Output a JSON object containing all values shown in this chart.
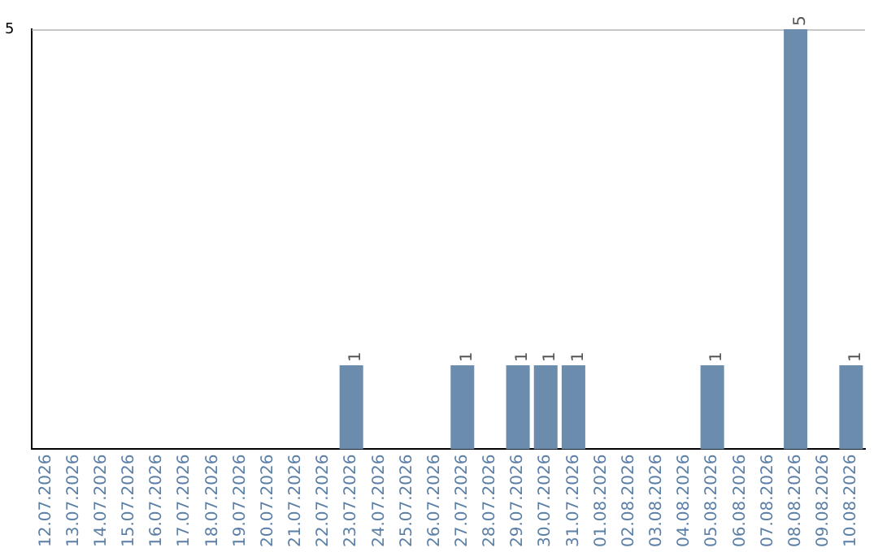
{
  "chart_data": {
    "type": "bar",
    "categories": [
      "12.07.2026",
      "13.07.2026",
      "14.07.2026",
      "15.07.2026",
      "16.07.2026",
      "17.07.2026",
      "18.07.2026",
      "19.07.2026",
      "20.07.2026",
      "21.07.2026",
      "22.07.2026",
      "23.07.2026",
      "24.07.2026",
      "25.07.2026",
      "26.07.2026",
      "27.07.2026",
      "28.07.2026",
      "29.07.2026",
      "30.07.2026",
      "31.07.2026",
      "01.08.2026",
      "02.08.2026",
      "03.08.2026",
      "04.08.2026",
      "05.08.2026",
      "06.08.2026",
      "07.08.2026",
      "08.08.2026",
      "09.08.2026",
      "10.08.2026"
    ],
    "values": [
      0,
      0,
      0,
      0,
      0,
      0,
      0,
      0,
      0,
      0,
      0,
      1,
      0,
      0,
      0,
      1,
      0,
      1,
      1,
      1,
      0,
      0,
      0,
      0,
      1,
      0,
      0,
      5,
      0,
      1
    ],
    "value_labels": [
      null,
      null,
      null,
      null,
      null,
      null,
      null,
      null,
      null,
      null,
      null,
      "1",
      null,
      null,
      null,
      "1",
      null,
      "1",
      "1",
      "1",
      null,
      null,
      null,
      null,
      "1",
      null,
      null,
      "5",
      null,
      "1"
    ],
    "color": "#6b8cad",
    "ylim": [
      0,
      5
    ],
    "yticks": [
      5
    ],
    "legend": false
  }
}
